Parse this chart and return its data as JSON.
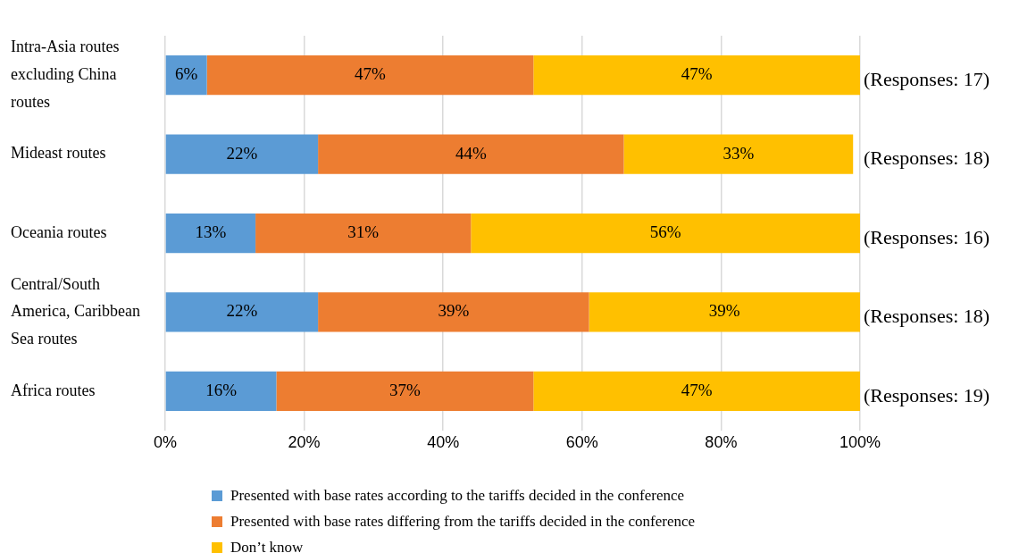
{
  "chart_data": {
    "type": "bar",
    "orientation": "horizontal",
    "stacked": true,
    "categories": [
      "Intra-Asia routes excluding China routes",
      "Mideast routes",
      "Oceania routes",
      "Central/South America, Caribbean Sea routes",
      "Africa routes"
    ],
    "series": [
      {
        "name": "Presented with base rates according to the tariffs decided in the conference",
        "color": "#5b9bd5",
        "values": [
          6,
          22,
          13,
          22,
          16
        ],
        "value_labels": [
          "6%",
          "22%",
          "13%",
          "22%",
          "16%"
        ]
      },
      {
        "name": "Presented with base rates differing from the tariffs decided in the conference",
        "color": "#ed7d31",
        "values": [
          47,
          44,
          31,
          39,
          37
        ],
        "value_labels": [
          "47%",
          "44%",
          "31%",
          "39%",
          "37%"
        ]
      },
      {
        "name": "Don’t know",
        "color": "#ffc000",
        "values": [
          47,
          33,
          56,
          39,
          47
        ],
        "value_labels": [
          "47%",
          "33%",
          "56%",
          "39%",
          "47%"
        ]
      }
    ],
    "xlim": [
      0,
      100
    ],
    "xticks": [
      {
        "value": 0,
        "label": "0%"
      },
      {
        "value": 20,
        "label": "20%"
      },
      {
        "value": 40,
        "label": "40%"
      },
      {
        "value": 60,
        "label": "60%"
      },
      {
        "value": 80,
        "label": "80%"
      },
      {
        "value": 100,
        "label": "100%"
      }
    ],
    "grid": "x",
    "legend": "bottom",
    "annotations": [
      "(Responses: 17)",
      "(Responses: 18)",
      "(Responses: 16)",
      "(Responses: 18)",
      "(Responses: 19)"
    ]
  }
}
